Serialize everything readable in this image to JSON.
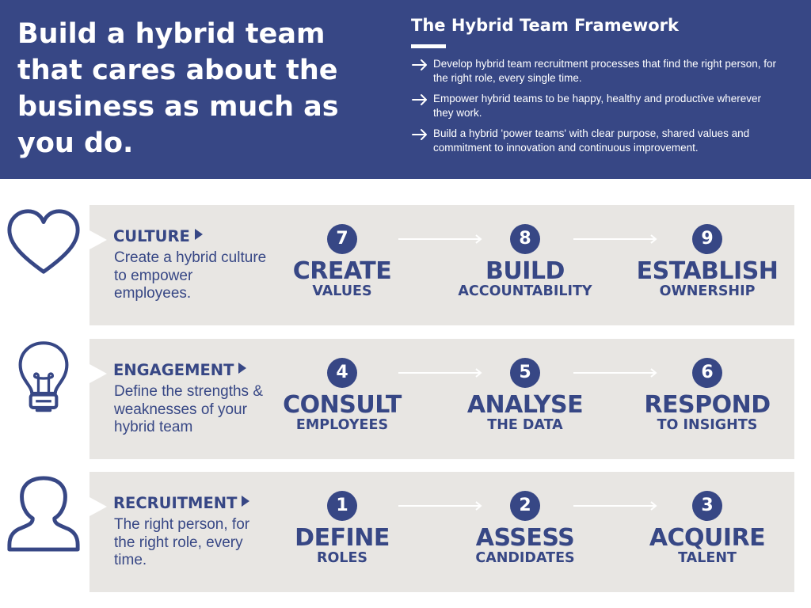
{
  "header": {
    "headline_lines": [
      "Build a hybrid team",
      "that cares about the",
      "business as much as",
      "you do."
    ],
    "framework_title": "The Hybrid Team Framework",
    "framework_items": [
      "Develop hybrid team recruitment processes that find the right person, for the right role, every single time.",
      "Empower hybrid teams to be happy, healthy and productive wherever they work.",
      "Build a hybrid 'power teams' with clear purpose, shared values and commitment to innovation and continuous improvement."
    ]
  },
  "rows": [
    {
      "icon": "heart-icon",
      "title": "CULTURE",
      "description": "Create a hybrid culture to empower employees.",
      "steps": [
        {
          "number": "7",
          "main": "CREATE",
          "sub": "VALUES"
        },
        {
          "number": "8",
          "main": "BUILD",
          "sub": "ACCOUNTABILITY"
        },
        {
          "number": "9",
          "main": "ESTABLISH",
          "sub": "OWNERSHIP"
        }
      ]
    },
    {
      "icon": "lightbulb-icon",
      "title": "ENGAGEMENT",
      "description": "Define the strengths & weaknesses of your hybrid team",
      "steps": [
        {
          "number": "4",
          "main": "CONSULT",
          "sub": "EMPLOYEES"
        },
        {
          "number": "5",
          "main": "ANALYSE",
          "sub": "THE DATA"
        },
        {
          "number": "6",
          "main": "RESPOND",
          "sub": "TO INSIGHTS"
        }
      ]
    },
    {
      "icon": "person-icon",
      "title": "RECRUITMENT",
      "description": "The right person, for the right role, every time.",
      "steps": [
        {
          "number": "1",
          "main": "DEFINE",
          "sub": "ROLES"
        },
        {
          "number": "2",
          "main": "ASSESS",
          "sub": "CANDIDATES"
        },
        {
          "number": "3",
          "main": "ACQUIRE",
          "sub": "TALENT"
        }
      ]
    }
  ],
  "colors": {
    "brand_blue": "#374785",
    "panel_gray": "#e8e6e3",
    "white": "#ffffff"
  }
}
